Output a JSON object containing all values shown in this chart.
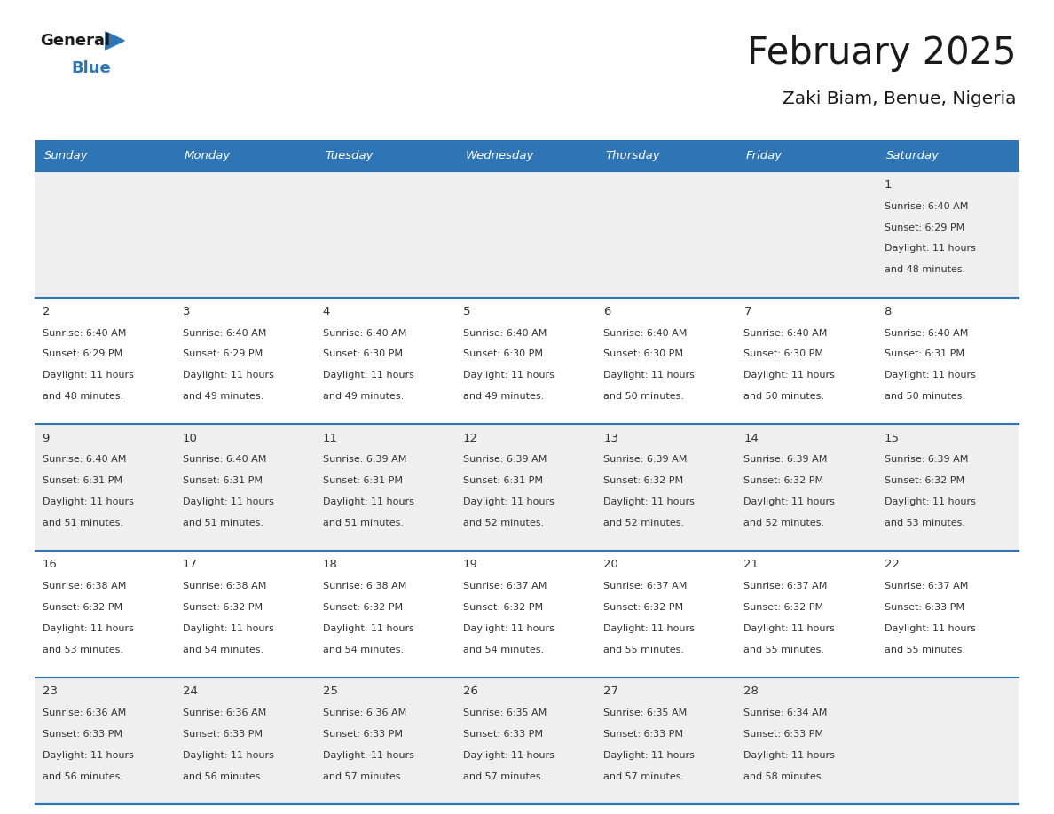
{
  "title": "February 2025",
  "subtitle": "Zaki Biam, Benue, Nigeria",
  "header_bg": "#2E75B6",
  "header_text_color": "#FFFFFF",
  "days_of_week": [
    "Sunday",
    "Monday",
    "Tuesday",
    "Wednesday",
    "Thursday",
    "Friday",
    "Saturday"
  ],
  "cell_bg_row0": "#EFEFEF",
  "cell_bg_row1": "#FFFFFF",
  "cell_bg_row2": "#EFEFEF",
  "cell_bg_row3": "#FFFFFF",
  "cell_bg_row4": "#EFEFEF",
  "cell_border_color": "#2E75B6",
  "text_color": "#333333",
  "calendar": [
    [
      null,
      null,
      null,
      null,
      null,
      null,
      {
        "day": "1",
        "sunrise": "6:40 AM",
        "sunset": "6:29 PM",
        "daylight_l1": "11 hours",
        "daylight_l2": "and 48 minutes."
      }
    ],
    [
      {
        "day": "2",
        "sunrise": "6:40 AM",
        "sunset": "6:29 PM",
        "daylight_l1": "11 hours",
        "daylight_l2": "and 48 minutes."
      },
      {
        "day": "3",
        "sunrise": "6:40 AM",
        "sunset": "6:29 PM",
        "daylight_l1": "11 hours",
        "daylight_l2": "and 49 minutes."
      },
      {
        "day": "4",
        "sunrise": "6:40 AM",
        "sunset": "6:30 PM",
        "daylight_l1": "11 hours",
        "daylight_l2": "and 49 minutes."
      },
      {
        "day": "5",
        "sunrise": "6:40 AM",
        "sunset": "6:30 PM",
        "daylight_l1": "11 hours",
        "daylight_l2": "and 49 minutes."
      },
      {
        "day": "6",
        "sunrise": "6:40 AM",
        "sunset": "6:30 PM",
        "daylight_l1": "11 hours",
        "daylight_l2": "and 50 minutes."
      },
      {
        "day": "7",
        "sunrise": "6:40 AM",
        "sunset": "6:30 PM",
        "daylight_l1": "11 hours",
        "daylight_l2": "and 50 minutes."
      },
      {
        "day": "8",
        "sunrise": "6:40 AM",
        "sunset": "6:31 PM",
        "daylight_l1": "11 hours",
        "daylight_l2": "and 50 minutes."
      }
    ],
    [
      {
        "day": "9",
        "sunrise": "6:40 AM",
        "sunset": "6:31 PM",
        "daylight_l1": "11 hours",
        "daylight_l2": "and 51 minutes."
      },
      {
        "day": "10",
        "sunrise": "6:40 AM",
        "sunset": "6:31 PM",
        "daylight_l1": "11 hours",
        "daylight_l2": "and 51 minutes."
      },
      {
        "day": "11",
        "sunrise": "6:39 AM",
        "sunset": "6:31 PM",
        "daylight_l1": "11 hours",
        "daylight_l2": "and 51 minutes."
      },
      {
        "day": "12",
        "sunrise": "6:39 AM",
        "sunset": "6:31 PM",
        "daylight_l1": "11 hours",
        "daylight_l2": "and 52 minutes."
      },
      {
        "day": "13",
        "sunrise": "6:39 AM",
        "sunset": "6:32 PM",
        "daylight_l1": "11 hours",
        "daylight_l2": "and 52 minutes."
      },
      {
        "day": "14",
        "sunrise": "6:39 AM",
        "sunset": "6:32 PM",
        "daylight_l1": "11 hours",
        "daylight_l2": "and 52 minutes."
      },
      {
        "day": "15",
        "sunrise": "6:39 AM",
        "sunset": "6:32 PM",
        "daylight_l1": "11 hours",
        "daylight_l2": "and 53 minutes."
      }
    ],
    [
      {
        "day": "16",
        "sunrise": "6:38 AM",
        "sunset": "6:32 PM",
        "daylight_l1": "11 hours",
        "daylight_l2": "and 53 minutes."
      },
      {
        "day": "17",
        "sunrise": "6:38 AM",
        "sunset": "6:32 PM",
        "daylight_l1": "11 hours",
        "daylight_l2": "and 54 minutes."
      },
      {
        "day": "18",
        "sunrise": "6:38 AM",
        "sunset": "6:32 PM",
        "daylight_l1": "11 hours",
        "daylight_l2": "and 54 minutes."
      },
      {
        "day": "19",
        "sunrise": "6:37 AM",
        "sunset": "6:32 PM",
        "daylight_l1": "11 hours",
        "daylight_l2": "and 54 minutes."
      },
      {
        "day": "20",
        "sunrise": "6:37 AM",
        "sunset": "6:32 PM",
        "daylight_l1": "11 hours",
        "daylight_l2": "and 55 minutes."
      },
      {
        "day": "21",
        "sunrise": "6:37 AM",
        "sunset": "6:32 PM",
        "daylight_l1": "11 hours",
        "daylight_l2": "and 55 minutes."
      },
      {
        "day": "22",
        "sunrise": "6:37 AM",
        "sunset": "6:33 PM",
        "daylight_l1": "11 hours",
        "daylight_l2": "and 55 minutes."
      }
    ],
    [
      {
        "day": "23",
        "sunrise": "6:36 AM",
        "sunset": "6:33 PM",
        "daylight_l1": "11 hours",
        "daylight_l2": "and 56 minutes."
      },
      {
        "day": "24",
        "sunrise": "6:36 AM",
        "sunset": "6:33 PM",
        "daylight_l1": "11 hours",
        "daylight_l2": "and 56 minutes."
      },
      {
        "day": "25",
        "sunrise": "6:36 AM",
        "sunset": "6:33 PM",
        "daylight_l1": "11 hours",
        "daylight_l2": "and 57 minutes."
      },
      {
        "day": "26",
        "sunrise": "6:35 AM",
        "sunset": "6:33 PM",
        "daylight_l1": "11 hours",
        "daylight_l2": "and 57 minutes."
      },
      {
        "day": "27",
        "sunrise": "6:35 AM",
        "sunset": "6:33 PM",
        "daylight_l1": "11 hours",
        "daylight_l2": "and 57 minutes."
      },
      {
        "day": "28",
        "sunrise": "6:34 AM",
        "sunset": "6:33 PM",
        "daylight_l1": "11 hours",
        "daylight_l2": "and 58 minutes."
      },
      null
    ]
  ],
  "row_bg_colors": [
    "#EFEFEF",
    "#FFFFFF",
    "#EFEFEF",
    "#FFFFFF",
    "#EFEFEF"
  ]
}
